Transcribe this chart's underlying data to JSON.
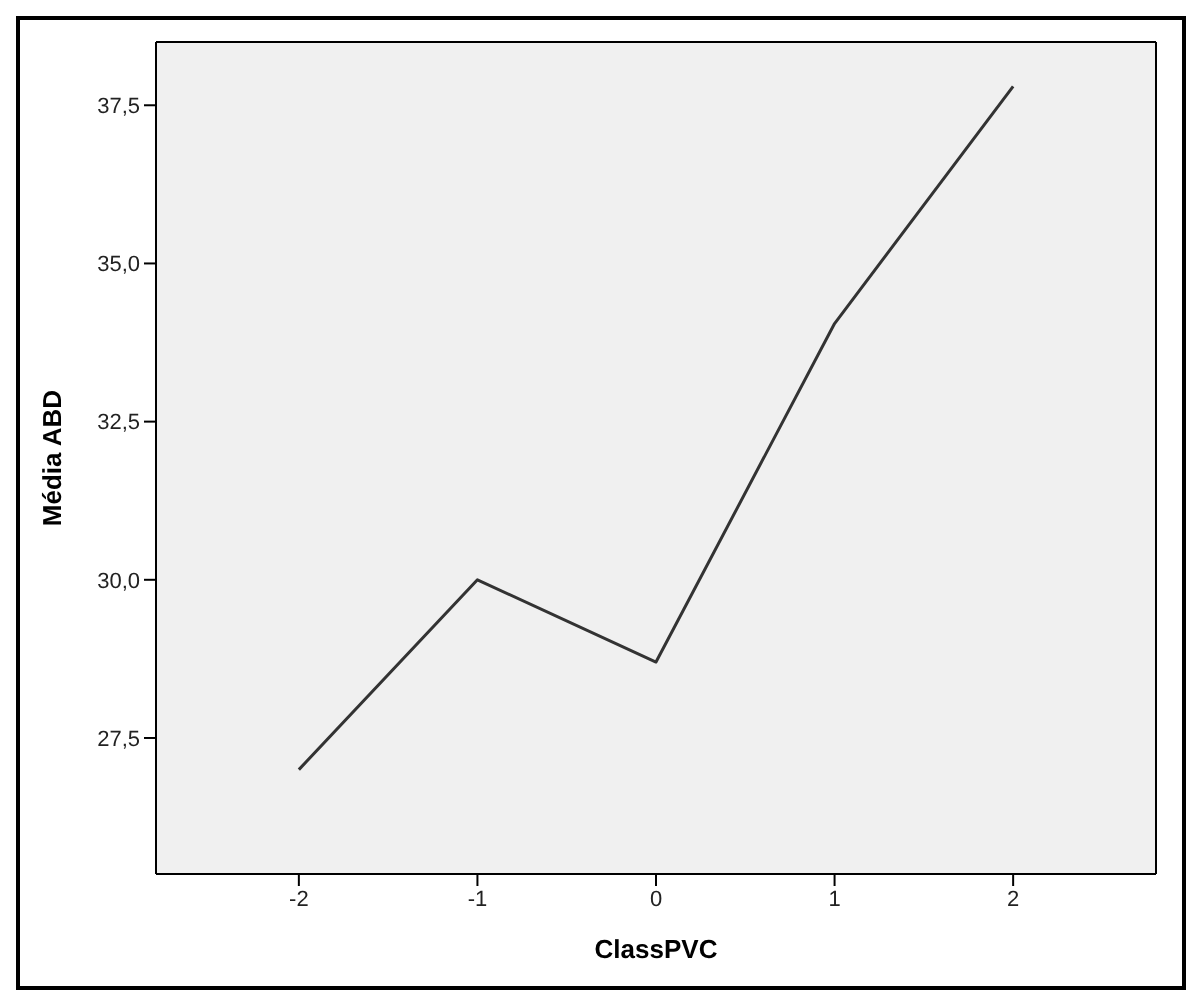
{
  "chart_data": {
    "type": "line",
    "xlabel": "ClassPVC",
    "ylabel": "Média ABD",
    "x": [
      -2,
      -1,
      0,
      1,
      2
    ],
    "series": [
      {
        "color": "#333333",
        "values": [
          27.0,
          30.0,
          28.7,
          34.05,
          37.8
        ]
      }
    ],
    "xlim": [
      -2.8,
      2.8
    ],
    "xticks": [
      -2,
      -1,
      0,
      1,
      2
    ],
    "ylim": [
      25.35,
      38.5
    ],
    "yticks": [
      {
        "value": 27.5,
        "label": "27,5"
      },
      {
        "value": 30,
        "label": "30,0"
      },
      {
        "value": 32.5,
        "label": "32,5"
      },
      {
        "value": 35,
        "label": "35,0"
      },
      {
        "value": 37.5,
        "label": "37,5"
      }
    ],
    "marker": "none",
    "line_style": "solid",
    "legend": false,
    "grid": false
  }
}
